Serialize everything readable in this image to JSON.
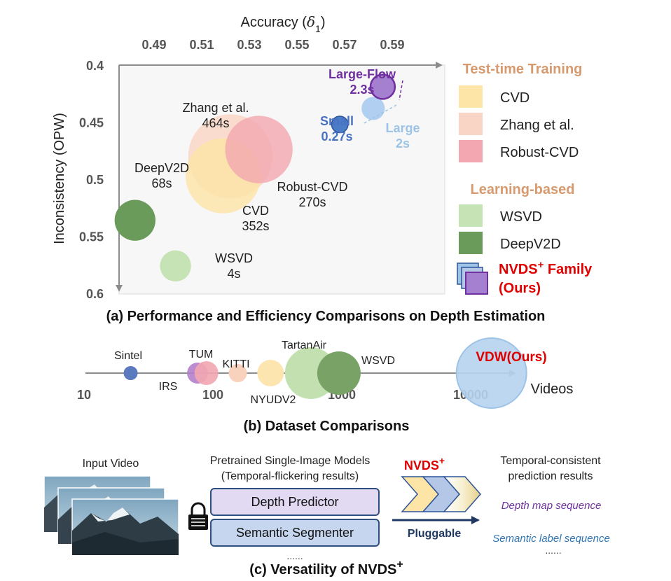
{
  "panel_a": {
    "caption": "(a) Performance and Efficiency Comparisons on Depth Estimation",
    "legend": {
      "heading_test_time": "Test-time Training",
      "heading_learning": "Learning-based",
      "items": [
        {
          "label": "CVD",
          "color": "#FDE4A7"
        },
        {
          "label": "Zhang et al.",
          "color": "#F9D5C5"
        },
        {
          "label": "Robust-CVD",
          "color": "#F3A8B1"
        },
        {
          "label": "WSVD",
          "color": "#C6E3B5"
        },
        {
          "label": "DeepV2D",
          "color": "#6A9B5A"
        }
      ],
      "ours_label_1": "NVDS",
      "ours_sup": "+",
      "ours_label_2": " Family",
      "ours_label_3": "(Ours)",
      "ours_color": "#E00000",
      "heading_color": "#D79A6E"
    }
  },
  "panel_b": {
    "caption": "(b) Dataset Comparisons"
  },
  "panel_c": {
    "caption_main": "(c) Versatility of NVDS",
    "caption_sup": "+",
    "input_video_label": "Input Video",
    "models_title_1": "Pretrained Single-Image Models",
    "models_title_2": "(Temporal-flickering results)",
    "depth_predictor": "Depth Predictor",
    "semantic_segmenter": "Semantic Segmenter",
    "ellipsis_left": "......",
    "nvds_label": "NVDS",
    "nvds_sup": "+",
    "pluggable": "Pluggable",
    "result_title_1": "Temporal-consistent",
    "result_title_2": "prediction results",
    "depth_seq": "Depth map sequence",
    "semantic_seq": "Semantic label sequence",
    "ellipsis_right": "......"
  },
  "chart_data": [
    {
      "type": "scatter",
      "subtype": "bubble",
      "xlabel": "Accuracy (δ1)",
      "ylabel": "Inconsistency (OPW)",
      "x_axis_position": "top",
      "y_axis_inverted": true,
      "xlim": [
        0.465,
        0.6
      ],
      "ylim": [
        0.4,
        0.6
      ],
      "x_ticks": [
        0.49,
        0.51,
        0.53,
        0.55,
        0.57,
        0.59
      ],
      "y_ticks": [
        0.4,
        0.45,
        0.5,
        0.55,
        0.6
      ],
      "y_tick_labels": [
        "0.4",
        "0.45",
        "0.5",
        "0.55",
        "0.6"
      ],
      "grid": false,
      "legend_position": "right",
      "points": [
        {
          "name": "CVD",
          "label_1": "CVD",
          "label_2": "352s",
          "x": 0.519,
          "y": 0.497,
          "runtime_s": 352,
          "color": "#FDE4A7",
          "label_color": "#222222"
        },
        {
          "name": "Zhang et al.",
          "label_1": "Zhang et al.",
          "label_2": "464s",
          "x": 0.522,
          "y": 0.48,
          "runtime_s": 464,
          "color": "#F9D5C5",
          "label_color": "#222222"
        },
        {
          "name": "Robust-CVD",
          "label_1": "Robust-CVD",
          "label_2": "270s",
          "x": 0.534,
          "y": 0.474,
          "runtime_s": 270,
          "color": "#F3A8B1",
          "label_color": "#222222"
        },
        {
          "name": "DeepV2D",
          "label_1": "DeepV2D",
          "label_2": "68s",
          "x": 0.482,
          "y": 0.536,
          "runtime_s": 68,
          "color": "#6A9B5A",
          "label_color": "#222222"
        },
        {
          "name": "WSVD",
          "label_1": "WSVD",
          "label_2": "4s",
          "x": 0.499,
          "y": 0.576,
          "runtime_s": 4,
          "color": "#C6E3B5",
          "label_color": "#222222"
        },
        {
          "name": "Small",
          "label_1": "Small",
          "label_2": "0.27s",
          "x": 0.568,
          "y": 0.452,
          "runtime_s": 0.27,
          "color": "#4A7CC7",
          "label_color": "#4A72C4"
        },
        {
          "name": "Large",
          "label_1": "Large",
          "label_2": "2s",
          "x": 0.582,
          "y": 0.438,
          "runtime_s": 2,
          "color": "#A9CBEF",
          "label_color": "#9DC3E6"
        },
        {
          "name": "Large-Flow",
          "label_1": "Large-Flow",
          "label_2": "2.3s",
          "x": 0.586,
          "y": 0.419,
          "runtime_s": 2.3,
          "color": "#A57FD0",
          "label_color": "#7030A0"
        }
      ]
    },
    {
      "type": "scatter",
      "subtype": "bubble",
      "xlabel": "Videos",
      "x_scale": "log",
      "x_tick_values": [
        10,
        100,
        1000,
        10000
      ],
      "x_tick_labels": [
        "10",
        "100",
        "1000",
        "10000"
      ],
      "grid": false,
      "points": [
        {
          "name": "Sintel",
          "x": 23,
          "color": "#5B79BF",
          "label_color": "#222222"
        },
        {
          "name": "IRS",
          "x": 76,
          "color": "#B57FCC",
          "label_color": "#222222"
        },
        {
          "name": "TUM",
          "x": 89,
          "color": "#F2A6B0",
          "label_color": "#222222"
        },
        {
          "name": "KITTI",
          "x": 156,
          "color": "#F9D2BD",
          "label_color": "#222222"
        },
        {
          "name": "NYUDV2",
          "x": 280,
          "color": "#FDE5B0",
          "label_color": "#222222"
        },
        {
          "name": "TartanAir",
          "x": 575,
          "color": "#C2E0B0",
          "label_color": "#222222"
        },
        {
          "name": "WSVD",
          "x": 950,
          "color": "#79A366",
          "label_color": "#222222"
        },
        {
          "name": "VDW(Ours)",
          "x": 14500,
          "color": "#B7D3EF",
          "label_color": "#E00000"
        }
      ]
    }
  ]
}
